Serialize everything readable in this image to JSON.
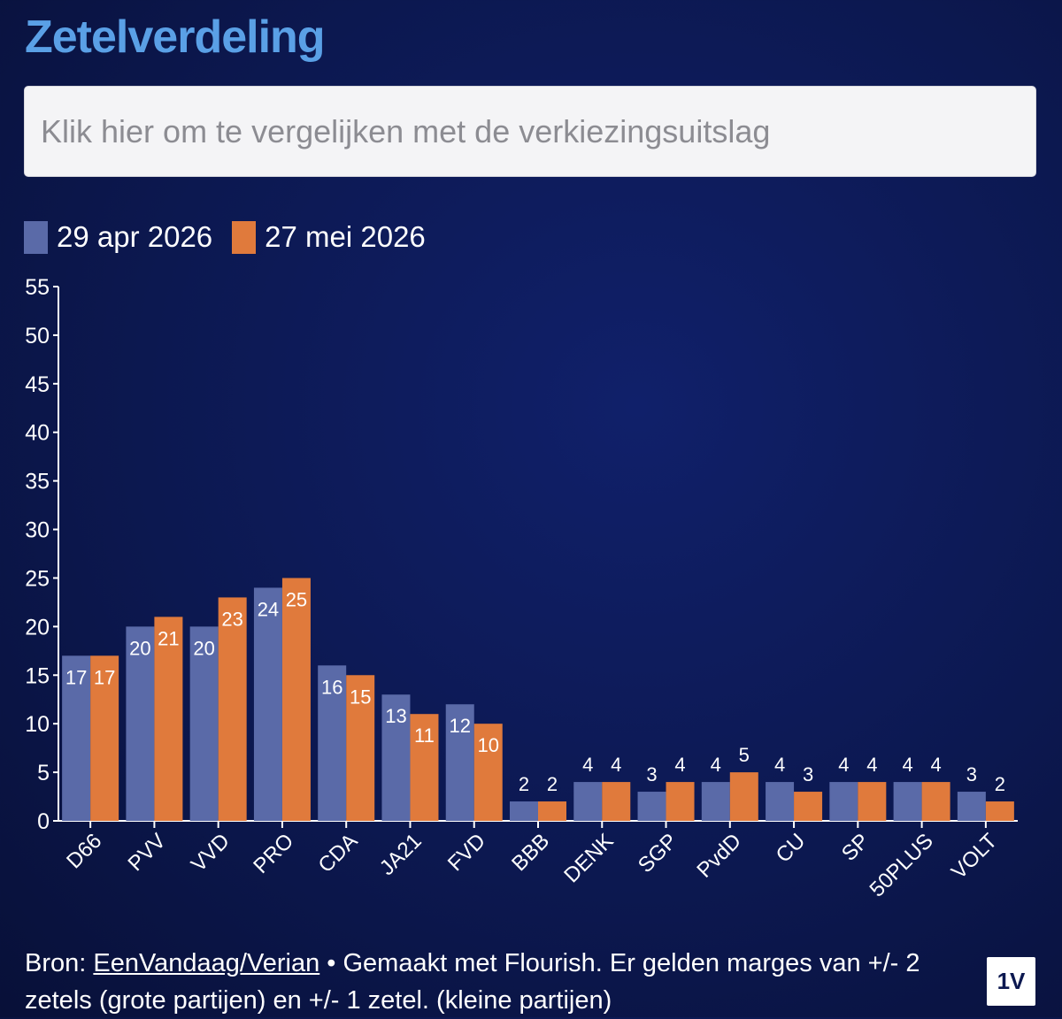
{
  "header": {
    "title": "Zetelverdeling"
  },
  "compare": {
    "placeholder": "Klik hier om te vergelijken met de verkiezingsuitslag"
  },
  "legend": [
    {
      "label": "29 apr 2026",
      "color": "#5a6aa8"
    },
    {
      "label": "27 mei 2026",
      "color": "#e07a3c"
    }
  ],
  "chart_data": {
    "type": "bar",
    "categories": [
      "D66",
      "PVV",
      "VVD",
      "PRO",
      "CDA",
      "JA21",
      "FVD",
      "BBB",
      "DENK",
      "SGP",
      "PvdD",
      "CU",
      "SP",
      "50PLUS",
      "VOLT"
    ],
    "series": [
      {
        "name": "29 apr 2026",
        "color": "#5a6aa8",
        "values": [
          17,
          20,
          20,
          24,
          16,
          13,
          12,
          2,
          4,
          3,
          4,
          4,
          4,
          4,
          3
        ]
      },
      {
        "name": "27 mei 2026",
        "color": "#e07a3c",
        "values": [
          17,
          21,
          23,
          25,
          15,
          11,
          10,
          2,
          4,
          4,
          5,
          3,
          4,
          4,
          2
        ]
      }
    ],
    "ylim": [
      0,
      55
    ],
    "yticks": [
      0,
      5,
      10,
      15,
      20,
      25,
      30,
      35,
      40,
      45,
      50,
      55
    ],
    "legend_position": "top-left",
    "grid": false
  },
  "footer": {
    "prefix": "Bron: ",
    "source_link": "EenVandaag/Verian",
    "suffix": " • Gemaakt met Flourish. Er gelden marges van +/- 2 zetels (grote partijen) en +/- 1 zetel. (kleine partijen)"
  },
  "logo": {
    "text": "1V"
  }
}
